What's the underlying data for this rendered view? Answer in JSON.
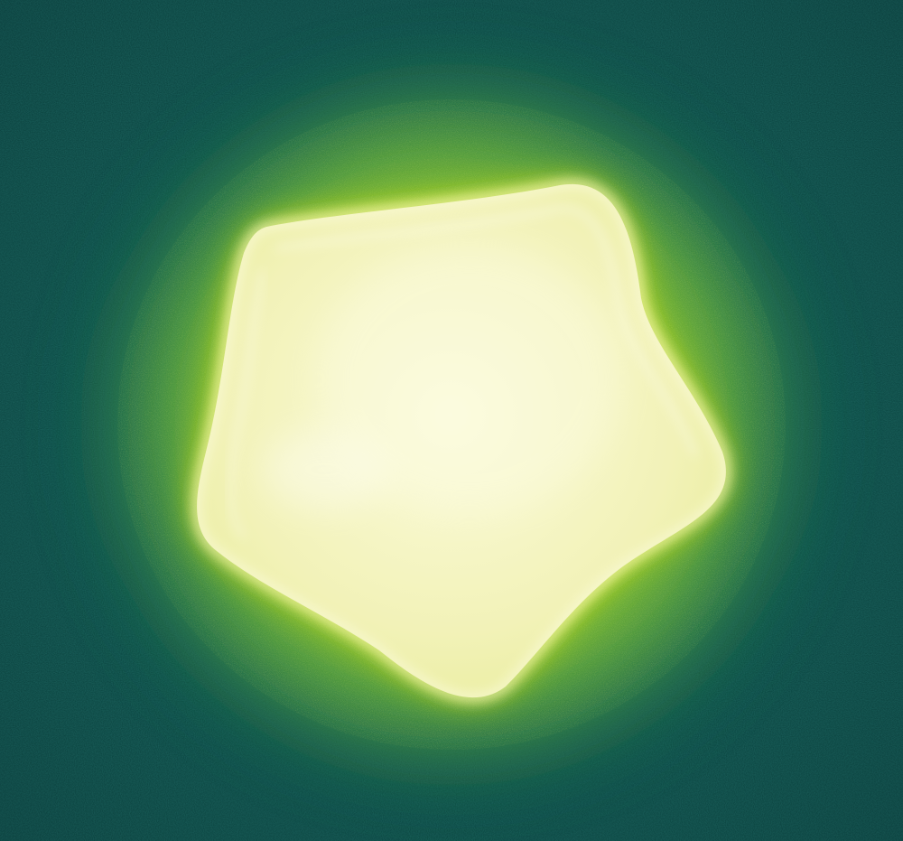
{
  "image": {
    "subject": "pentagonal-nanoparticle",
    "colors": {
      "background": "#0b4a46",
      "background_dark": "#083a38",
      "halo_outer": "#1f7a4f",
      "halo_mid": "#9fd12a",
      "halo_inner": "#f4f51a",
      "particle_edge": "#e9ee7a",
      "particle_fill": "#f2f2b8",
      "particle_highlight": "#fbfbdc"
    }
  }
}
